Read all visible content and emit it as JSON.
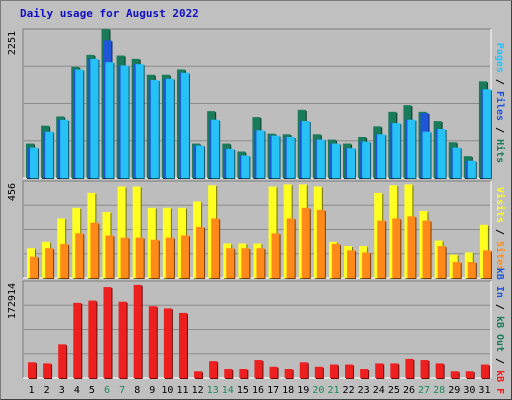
{
  "title": "Daily usage for August 2022",
  "colors": {
    "background": "#c0c0c0",
    "panel": "#bdbdbd",
    "title": "#1010c0",
    "hits": "#1a7b5a",
    "files": "#1f56d8",
    "pages": "#26c2f5",
    "visits": "#ffff22",
    "sites": "#ff8a1a",
    "kb": "#ee1f1f",
    "weekend_label": "#1a8a5a",
    "weekday_label": "#000000"
  },
  "legend": {
    "top": {
      "pages": "Pages",
      "files": "Files",
      "hits": "Hits",
      "sep": " / "
    },
    "middle": {
      "visits": "Visits",
      "sites": "Sites",
      "sep": " / "
    },
    "bottom": {
      "kb_in": "kB In",
      "kb_out": "kB Out",
      "kb_f": "kB F",
      "sep": " / "
    }
  },
  "chart_data": [
    {
      "type": "bar",
      "panel": "hits-files-pages",
      "ymax_label": "2251",
      "ylim": [
        0,
        2251
      ],
      "categories": [
        "1",
        "2",
        "3",
        "4",
        "5",
        "6",
        "7",
        "8",
        "9",
        "10",
        "11",
        "12",
        "13",
        "14",
        "15",
        "16",
        "17",
        "18",
        "19",
        "20",
        "21",
        "22",
        "23",
        "24",
        "25",
        "26",
        "27",
        "28",
        "29",
        "30",
        "31"
      ],
      "weekend_days": [
        6,
        7,
        13,
        14,
        20,
        21,
        27,
        28
      ],
      "series": [
        {
          "name": "Hits",
          "values": [
            520,
            790,
            930,
            1680,
            1860,
            2251,
            1850,
            1800,
            1560,
            1560,
            1640,
            520,
            1010,
            520,
            400,
            920,
            670,
            660,
            1030,
            660,
            580,
            520,
            620,
            780,
            1000,
            1100,
            1000,
            860,
            540,
            330,
            1460
          ]
        },
        {
          "name": "Files",
          "values": [
            460,
            700,
            880,
            1640,
            1800,
            2080,
            1700,
            1720,
            1480,
            1500,
            1590,
            490,
            880,
            440,
            340,
            720,
            640,
            620,
            860,
            580,
            520,
            450,
            550,
            660,
            830,
            880,
            980,
            740,
            460,
            260,
            1340
          ]
        },
        {
          "name": "Pages",
          "values": [
            460,
            700,
            880,
            1640,
            1800,
            1750,
            1700,
            1720,
            1480,
            1500,
            1590,
            490,
            880,
            440,
            340,
            720,
            640,
            620,
            860,
            580,
            520,
            450,
            550,
            660,
            830,
            880,
            700,
            740,
            460,
            260,
            1340
          ]
        }
      ]
    },
    {
      "type": "bar",
      "panel": "visits-sites",
      "ymax_label": "456",
      "ylim": [
        0,
        456
      ],
      "series": [
        {
          "name": "Visits",
          "values": [
            140,
            170,
            280,
            330,
            400,
            310,
            430,
            430,
            330,
            330,
            330,
            360,
            436,
            162,
            162,
            162,
            430,
            440,
            440,
            430,
            170,
            150,
            150,
            400,
            436,
            440,
            315,
            176,
            110,
            120,
            250
          ]
        },
        {
          "name": "Sites",
          "values": [
            100,
            140,
            160,
            210,
            260,
            200,
            190,
            190,
            180,
            190,
            200,
            240,
            280,
            140,
            140,
            140,
            210,
            280,
            330,
            320,
            160,
            130,
            120,
            270,
            280,
            290,
            270,
            150,
            75,
            75,
            130
          ]
        }
      ]
    },
    {
      "type": "bar",
      "panel": "kb",
      "ymax_label": "172914",
      "ylim": [
        0,
        172914
      ],
      "series": [
        {
          "name": "kB F",
          "values": [
            28000,
            26000,
            60000,
            134000,
            138000,
            162000,
            136000,
            166000,
            128000,
            124000,
            116000,
            12000,
            30000,
            16000,
            16000,
            32000,
            20000,
            16000,
            28000,
            20000,
            24000,
            24000,
            16000,
            26000,
            26000,
            34000,
            32000,
            26000,
            12000,
            12000,
            24000
          ]
        }
      ]
    }
  ]
}
